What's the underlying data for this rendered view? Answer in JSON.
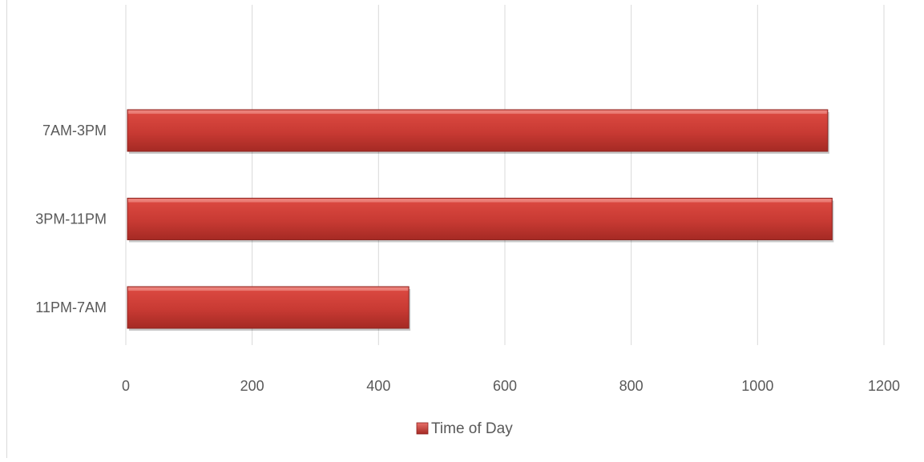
{
  "chart_data": {
    "type": "bar",
    "orientation": "horizontal",
    "categories": [
      "11PM-7AM",
      "3PM-11PM",
      "7AM-3PM"
    ],
    "series": [
      {
        "name": "Time of Day",
        "values": [
          448,
          1118,
          1111
        ],
        "color": "#c0392b"
      }
    ],
    "xlim": [
      0,
      1200
    ],
    "x_ticks": [
      0,
      200,
      400,
      600,
      800,
      1000,
      1200
    ],
    "grid": true,
    "legend": "bottom-center"
  }
}
